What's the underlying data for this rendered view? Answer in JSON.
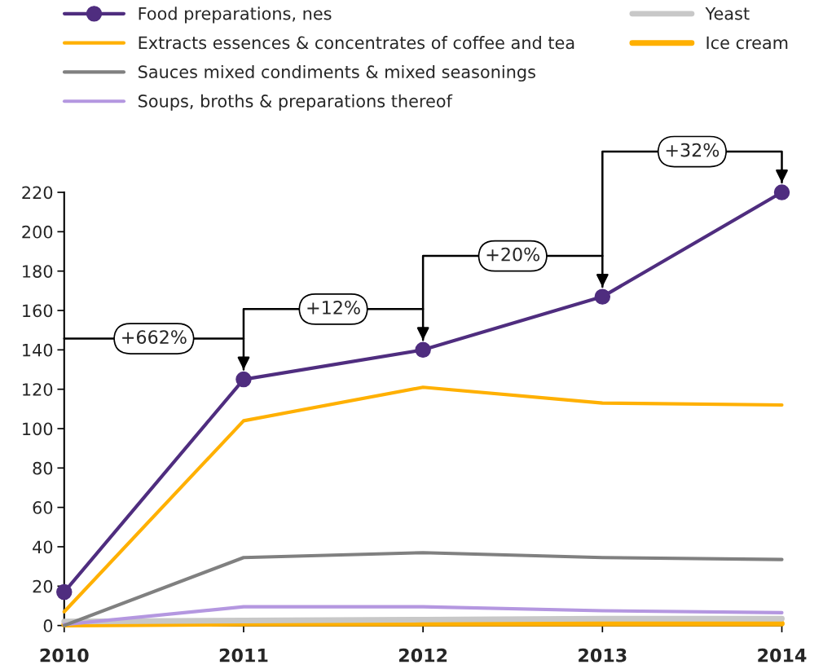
{
  "chart_data": {
    "type": "line",
    "categories": [
      "2010",
      "2011",
      "2012",
      "2013",
      "2014"
    ],
    "series": [
      {
        "name": "Food preparations, nes",
        "color": "#4f2d7f",
        "values": [
          17,
          125,
          140,
          167,
          220
        ],
        "marker": "circle"
      },
      {
        "name": "Extracts essences & concentrates of coffee and tea",
        "color": "#ffb000",
        "values": [
          7,
          104,
          121,
          113,
          112
        ]
      },
      {
        "name": "Sauces mixed condiments & mixed seasonings",
        "color": "#808080",
        "values": [
          0,
          34.5,
          37,
          34.5,
          33.5
        ]
      },
      {
        "name": "Soups, broths & preparations thereof",
        "color": "#b497e0",
        "values": [
          0.5,
          9.5,
          9.5,
          7.5,
          6.5
        ]
      },
      {
        "name": "Yeast",
        "color": "#c8c8c8",
        "values": [
          2,
          2.5,
          3,
          3.5,
          3.5
        ]
      },
      {
        "name": "Ice cream",
        "color": "#ffb000",
        "values": [
          0.5,
          1,
          1,
          1,
          1
        ]
      }
    ],
    "annotations": [
      "+662%",
      "+12%",
      "+20%",
      "+32%"
    ],
    "ylim": [
      0,
      220
    ],
    "yticks": [
      0,
      20,
      40,
      60,
      80,
      100,
      120,
      140,
      160,
      180,
      200,
      220
    ],
    "grid": false,
    "legend": "top"
  }
}
